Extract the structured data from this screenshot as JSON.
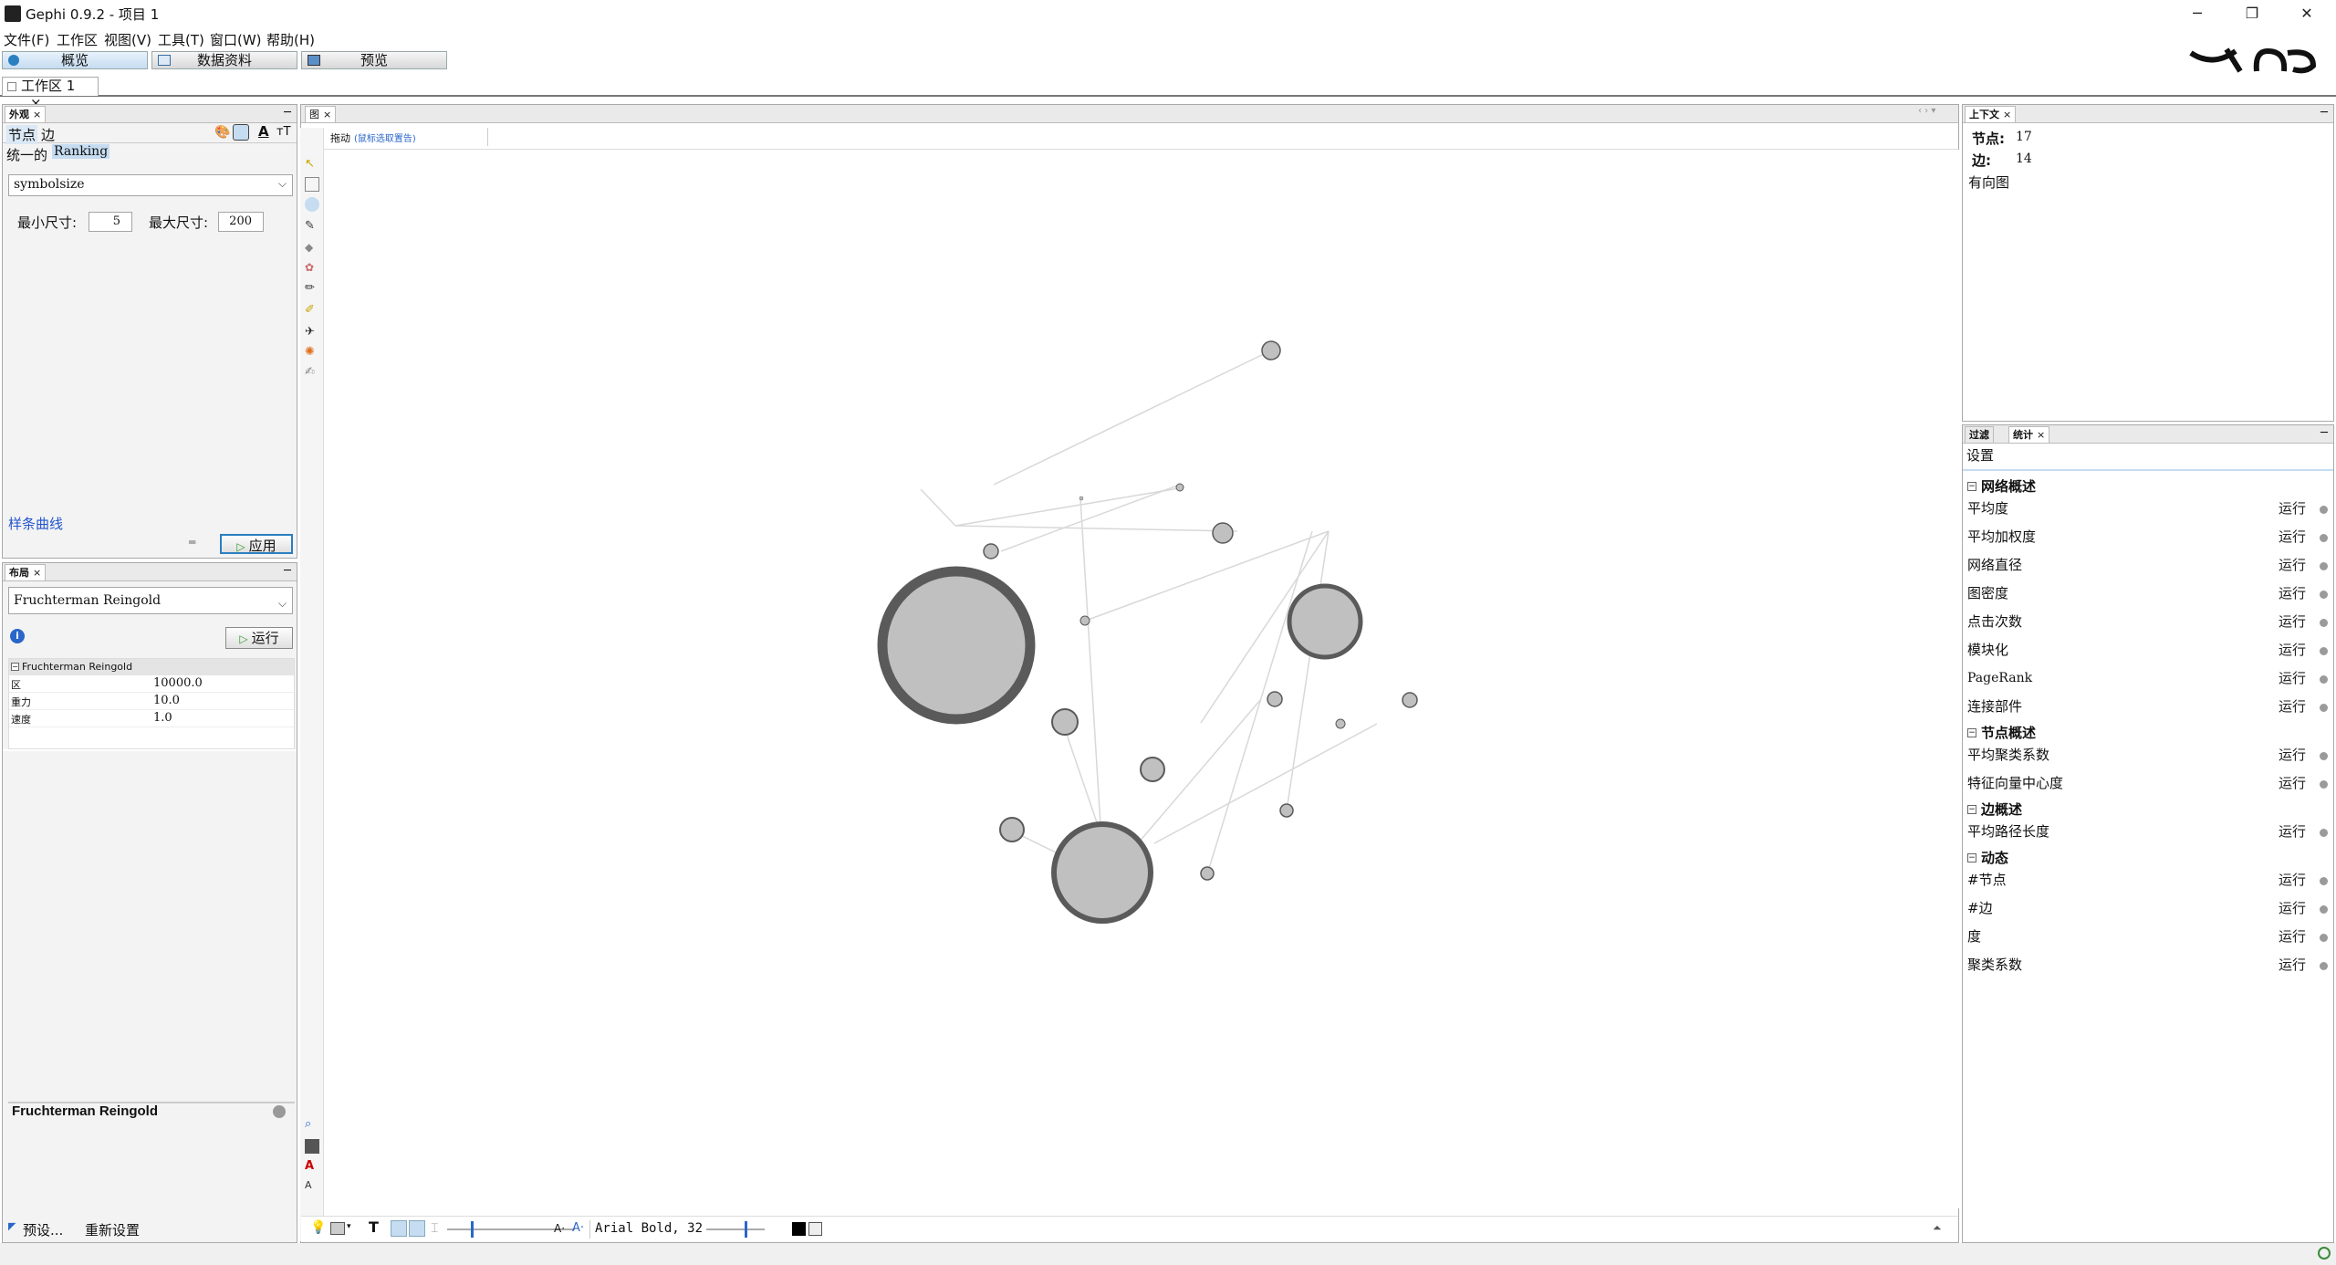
{
  "app": {
    "title": "Gephi 0.9.2 - 项目 1"
  },
  "window_controls": {
    "minimize": "─",
    "restore": "❐",
    "close": "✕"
  },
  "menu": [
    "文件(F)",
    "工作区",
    "视图(V)",
    "工具(T)",
    "窗口(W)",
    "帮助(H)"
  ],
  "modes": {
    "overview": "概览",
    "data_lab": "数据资料",
    "preview": "预览"
  },
  "workspace_tab": {
    "label": "工作区 1",
    "close": "×"
  },
  "appearance": {
    "panel_title": "外观",
    "close": "×",
    "tab_nodes": "节点",
    "tab_edges": "边",
    "sub_unique": "统一的",
    "sub_ranking": "Ranking",
    "attribute": "symbolsize",
    "min_size_label": "最小尺寸:",
    "min_size_value": "5",
    "max_size_label": "最大尺寸:",
    "max_size_value": "200",
    "spline_link": "样条曲线",
    "apply_label": "应用",
    "icon_text_a": "A",
    "icon_text_t": "тT"
  },
  "layout": {
    "panel_title": "布局",
    "close": "×",
    "algorithm": "Fruchterman Reingold",
    "run_label": "运行",
    "group_label": "Fruchterman Reingold",
    "props": [
      {
        "name": "区",
        "value": "10000.0"
      },
      {
        "name": "重力",
        "value": "10.0"
      },
      {
        "name": "速度",
        "value": "1.0"
      }
    ],
    "desc_title": "Fruchterman Reingold",
    "presets_label": "预设...",
    "reset_label": "重新设置"
  },
  "graph": {
    "tab_label": "图",
    "close": "×",
    "drag_label": "拖动",
    "drag_hint": "(鼠标选取置告)",
    "bottom_font": "Arial Bold, 32",
    "font_size_prefix": "A·",
    "font_a_label": "A·",
    "text_tool": "T"
  },
  "context": {
    "panel_title": "上下文",
    "close": "×",
    "nodes_label": "节点:",
    "nodes_value": "17",
    "edges_label": "边:",
    "edges_value": "14",
    "graph_type": "有向图"
  },
  "stats": {
    "tab_filter": "过滤",
    "tab_stats": "统计",
    "close": "×",
    "settings": "设置",
    "run": "运行",
    "sections": [
      {
        "title": "网络概述",
        "items": [
          "平均度",
          "平均加权度",
          "网络直径",
          "图密度",
          "点击次数",
          "模块化",
          "PageRank",
          "连接部件"
        ]
      },
      {
        "title": "节点概述",
        "items": [
          "平均聚类系数",
          "特征向量中心度"
        ]
      },
      {
        "title": "边概述",
        "items": [
          "平均路径长度"
        ]
      },
      {
        "title": "动态",
        "items": [
          "#节点",
          "#边",
          "度",
          "聚类系数"
        ]
      }
    ]
  },
  "colors": {
    "accent": "#c5dcf1",
    "node_fill": "#c0c0c0",
    "node_stroke": "#5a5a5a",
    "edge": "#d0d0d0"
  }
}
